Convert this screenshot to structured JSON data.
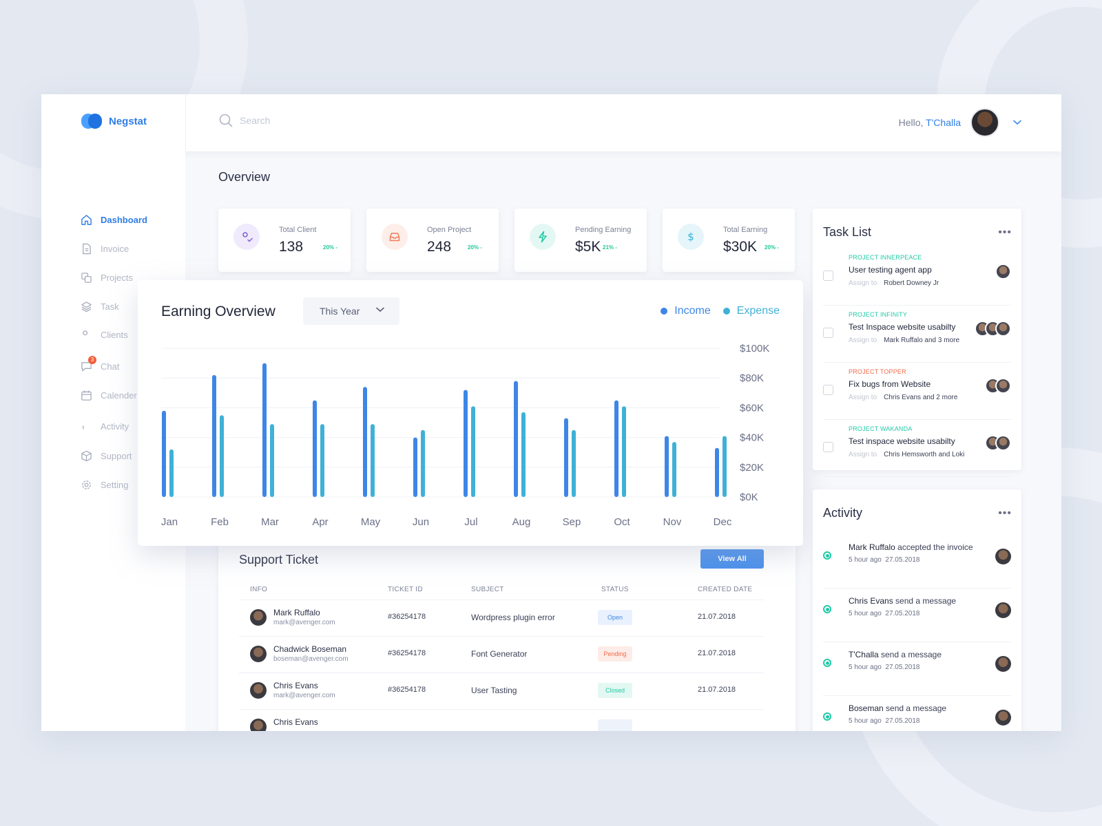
{
  "brand": {
    "name": "Negstat"
  },
  "search": {
    "placeholder": "Search"
  },
  "user": {
    "greeting": "Hello,",
    "name": "T'Challa"
  },
  "sidebar": {
    "items": [
      {
        "label": "Dashboard",
        "icon": "home-icon",
        "active": true
      },
      {
        "label": "Invoice",
        "icon": "file-icon"
      },
      {
        "label": "Projects",
        "icon": "copy-icon"
      },
      {
        "label": "Task",
        "icon": "layers-icon"
      },
      {
        "label": "Clients",
        "icon": "users-icon"
      },
      {
        "label": "Chat",
        "icon": "chat-icon",
        "badge": "3"
      },
      {
        "label": "Calender",
        "icon": "calendar-icon"
      },
      {
        "label": "Activity",
        "icon": "bell-icon"
      },
      {
        "label": "Support",
        "icon": "box-icon"
      },
      {
        "label": "Setting",
        "icon": "gear-icon"
      }
    ]
  },
  "overview": {
    "title": "Overview",
    "stats": [
      {
        "label": "Total Client",
        "value": "138",
        "change": "20% -",
        "icon": "user-check-icon",
        "color": "#7b5cd6",
        "bg": "#efeafc"
      },
      {
        "label": "Open Project",
        "value": "248",
        "change": "20% -",
        "icon": "inbox-icon",
        "color": "#f07a5a",
        "bg": "#fdeee9"
      },
      {
        "label": "Pending Earning",
        "value": "$5K",
        "change": "21% -",
        "icon": "bolt-icon",
        "color": "#20c9a6",
        "bg": "#e4f8f3"
      },
      {
        "label": "Total Earning",
        "value": "$30K",
        "change": "20% -",
        "icon": "dollar-icon",
        "color": "#2fb0d8",
        "bg": "#e5f5fa"
      }
    ]
  },
  "earning": {
    "title": "Earning Overview",
    "period": "This Year",
    "legend": {
      "income": "Income",
      "expense": "Expense"
    },
    "colors": {
      "income": "#3d86e6",
      "expense": "#3fb1d6"
    }
  },
  "chart_data": {
    "type": "bar",
    "categories": [
      "Jan",
      "Feb",
      "Mar",
      "Apr",
      "May",
      "Jun",
      "Jul",
      "Aug",
      "Sep",
      "Oct",
      "Nov",
      "Dec"
    ],
    "series": [
      {
        "name": "Income",
        "values": [
          58,
          82,
          90,
          65,
          74,
          40,
          72,
          78,
          53,
          65,
          41,
          33
        ]
      },
      {
        "name": "Expense",
        "values": [
          32,
          55,
          49,
          49,
          49,
          45,
          61,
          57,
          45,
          61,
          37,
          41
        ]
      }
    ],
    "y_ticks": [
      "$0K",
      "$20K",
      "$40K",
      "$60K",
      "$80K",
      "$100K"
    ],
    "ylim": [
      0,
      100
    ],
    "grid": true,
    "legend_position": "top-right"
  },
  "tickets": {
    "title": "Support Ticket",
    "view_all": "View All",
    "headers": {
      "info": "INFO",
      "ticket_id": "TICKET ID",
      "subject": "SUBJECT",
      "status": "STATUS",
      "date": "CREATED DATE"
    },
    "rows": [
      {
        "name": "Mark Ruffalo",
        "email": "mark@avenger.com",
        "id": "#36254178",
        "subject": "Wordpress plugin error",
        "status": "Open",
        "date": "21.07.2018"
      },
      {
        "name": "Chadwick Boseman",
        "email": "boseman@avenger.com",
        "id": "#36254178",
        "subject": "Font Generator",
        "status": "Pending",
        "date": "21.07.2018"
      },
      {
        "name": "Chris Evans",
        "email": "mark@avenger.com",
        "id": "#36254178",
        "subject": "User Tasting",
        "status": "Closed",
        "date": "21.07.2018"
      },
      {
        "name": "Chris Evans",
        "email": "",
        "id": "",
        "subject": "",
        "status": "",
        "date": ""
      }
    ],
    "status_colors": {
      "Open": {
        "fg": "#3d86e6",
        "bg": "#e8f1fd"
      },
      "Pending": {
        "fg": "#f06a4a",
        "bg": "#fdece7"
      },
      "Closed": {
        "fg": "#20c9a6",
        "bg": "#e3f8f2"
      }
    }
  },
  "tasks": {
    "title": "Task List",
    "assign_label": "Assign to",
    "items": [
      {
        "project": "PROJECT INNERPEACE",
        "project_color": "#20c9a6",
        "name": "User testing agent app",
        "assignee": "Robert Downey Jr",
        "avatars": 1
      },
      {
        "project": "PROJECT INFINITY",
        "project_color": "#20c9a6",
        "name": "Test Inspace website usabilty",
        "assignee": "Mark Ruffalo and 3 more",
        "avatars": 3
      },
      {
        "project": "PROJECT TOPPER",
        "project_color": "#f06a4a",
        "name": "Fix bugs from Website",
        "assignee": "Chris Evans and 2 more",
        "avatars": 2
      },
      {
        "project": "PROJECT  WAKANDA",
        "project_color": "#20c9a6",
        "name": "Test inspace website usabilty",
        "assignee": "Chris Hemsworth and Loki",
        "avatars": 2
      }
    ]
  },
  "activity": {
    "title": "Activity",
    "items": [
      {
        "actor": "Mark Ruffalo",
        "action": " accepted the invoice",
        "ago": "5 hour ago",
        "date": "27.05.2018"
      },
      {
        "actor": "Chris Evans",
        "action": " send a message",
        "ago": "5 hour ago",
        "date": "27.05.2018"
      },
      {
        "actor": "T'Challa",
        "action": " send a message",
        "ago": "5 hour ago",
        "date": "27.05.2018"
      },
      {
        "actor": "Boseman",
        "action": " send a message",
        "ago": "5 hour ago",
        "date": "27.05.2018"
      }
    ]
  }
}
